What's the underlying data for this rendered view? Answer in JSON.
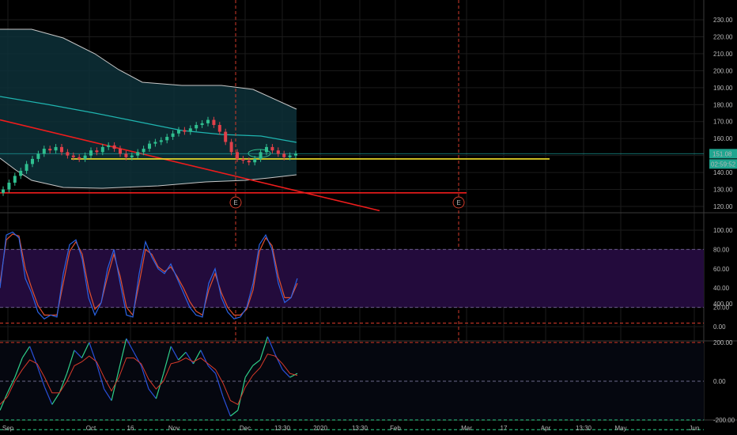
{
  "colors": {
    "background": "#000000",
    "grid": "#1b1b1b",
    "panel_sep": "#3a3a3a",
    "band_fill": "#0d3038",
    "band_line": "#c8c8c8",
    "mid_line": "#1fb5b0",
    "candle_up": "#2fbf8f",
    "candle_down": "#e0404a",
    "trend_red": "#ee1c1c",
    "support_yellow": "#f2e22a",
    "price_line": "#1fb5b0",
    "event_marker": "#d03a2a",
    "stoch_fill": "#230b3c",
    "stoch_k": "#2a63e6",
    "stoch_d": "#e0502e",
    "osc_green": "#2fd08a",
    "osc_blue": "#2a4fd8",
    "osc_red": "#d83a2a",
    "axis_text": "#b8b8b8",
    "label_bg": "#1fa58f"
  },
  "price_axis": {
    "ticks": [
      "230.00",
      "220.00",
      "210.00",
      "200.00",
      "190.00",
      "180.00",
      "170.00",
      "160.00",
      "150.00",
      "140.00",
      "130.00",
      "120.00"
    ],
    "last_price": "151.08",
    "countdown": "02:59:52"
  },
  "stoch_axis": {
    "ticks": [
      "100.00",
      "80.00",
      "60.00",
      "40.00",
      "20.00",
      "0.00"
    ]
  },
  "osc_axis": {
    "ticks": [
      "400.00",
      "200.00",
      "0.00",
      "-200.00"
    ]
  },
  "time_axis": {
    "labels": [
      "Sep",
      "Oct",
      "16",
      "Nov",
      "Dec",
      "13:30",
      "2020",
      "13:30",
      "Feb",
      "Mar",
      "17",
      "Apr",
      "13:30",
      "May",
      "Jun"
    ]
  },
  "events": [
    {
      "label": "E"
    },
    {
      "label": "E"
    }
  ],
  "chart_data": [
    {
      "type": "candlestick",
      "title": "",
      "y_range": [
        115,
        235
      ],
      "series": [
        {
          "name": "",
          "close": [
            130,
            134,
            138,
            141,
            145,
            148,
            151,
            154,
            153,
            155,
            152,
            150,
            149,
            148,
            150,
            153,
            152,
            155,
            156,
            154,
            151,
            149,
            150,
            152,
            154,
            157,
            158,
            159,
            161,
            163,
            165,
            164,
            166,
            168,
            169,
            171,
            168,
            164,
            158,
            152,
            148,
            147,
            146,
            148,
            152,
            155,
            153,
            151,
            149,
            150,
            151
          ]
        }
      ],
      "support_line": 148,
      "horizontal_line": 128,
      "last_price": 151.08
    },
    {
      "type": "line",
      "title": "",
      "y_range": [
        -10,
        110
      ],
      "band": [
        20,
        80
      ],
      "series": [
        {
          "name": "",
          "values": [
            40,
            95,
            98,
            92,
            50,
            35,
            15,
            8,
            12,
            10,
            55,
            85,
            90,
            70,
            30,
            12,
            25,
            60,
            80,
            45,
            12,
            10,
            55,
            88,
            72,
            60,
            55,
            65,
            50,
            35,
            20,
            12,
            10,
            45,
            60,
            30,
            15,
            8,
            10,
            20,
            45,
            85,
            95,
            80,
            45,
            25,
            30,
            50
          ]
        },
        {
          "name": "",
          "values": [
            45,
            90,
            96,
            94,
            60,
            40,
            22,
            12,
            12,
            12,
            45,
            78,
            88,
            75,
            40,
            18,
            25,
            52,
            75,
            52,
            20,
            12,
            45,
            80,
            75,
            62,
            57,
            62,
            52,
            40,
            26,
            16,
            12,
            38,
            55,
            35,
            20,
            12,
            12,
            18,
            38,
            78,
            92,
            84,
            52,
            30,
            30,
            45
          ]
        }
      ]
    },
    {
      "type": "line",
      "title": "",
      "y_range": [
        -300,
        420
      ],
      "reference_lines": [
        300,
        200,
        0,
        -200,
        -250
      ],
      "series": [
        {
          "name": "",
          "values": [
            -150,
            -60,
            20,
            120,
            180,
            80,
            -30,
            -120,
            -60,
            40,
            160,
            120,
            200,
            90,
            -40,
            -100,
            60,
            220,
            150,
            80,
            -40,
            -90,
            40,
            180,
            110,
            150,
            90,
            160,
            80,
            40,
            -80,
            -180,
            -150,
            20,
            80,
            110,
            230,
            140,
            60,
            20,
            40
          ]
        },
        {
          "name": "",
          "values": [
            -120,
            -80,
            0,
            60,
            110,
            90,
            20,
            -60,
            -60,
            0,
            80,
            100,
            130,
            100,
            20,
            -50,
            20,
            120,
            120,
            90,
            10,
            -40,
            0,
            90,
            100,
            120,
            100,
            120,
            90,
            60,
            -10,
            -100,
            -120,
            -30,
            30,
            70,
            140,
            130,
            90,
            40,
            30
          ]
        }
      ]
    }
  ]
}
